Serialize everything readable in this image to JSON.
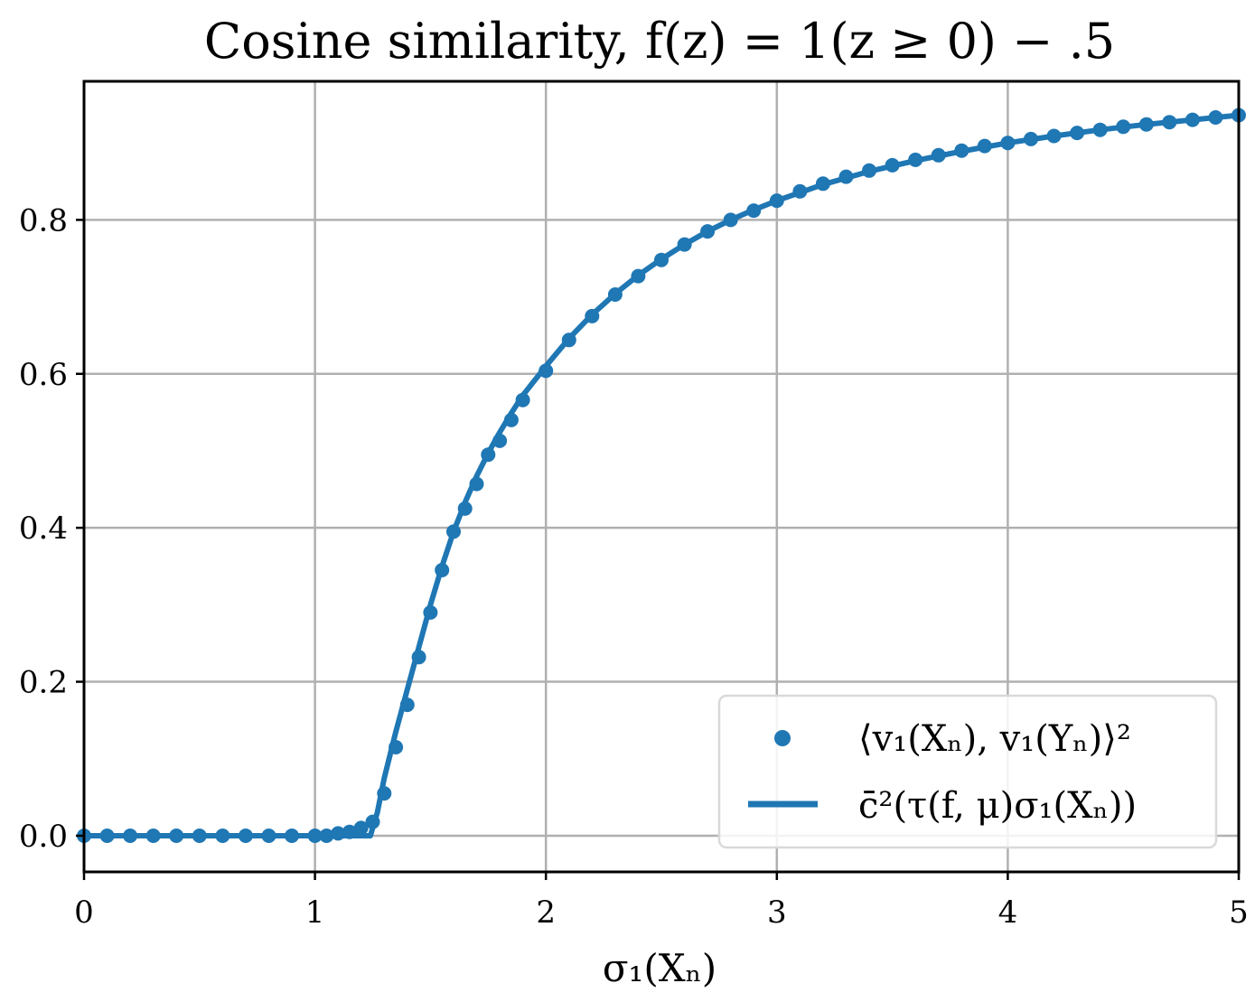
{
  "colors": {
    "series": "#1f77b4",
    "grid": "#b0b0b0",
    "axis": "#000000",
    "legend_border": "#d9d9d9"
  },
  "chart_data": {
    "type": "scatter",
    "title": "Cosine similarity, f(z) = 1(z ≥ 0) − .5",
    "xlabel": "σ₁(Xₙ)",
    "ylabel": "",
    "xlim": [
      0,
      5
    ],
    "ylim": [
      -0.047,
      0.98
    ],
    "xticks": [
      0,
      1,
      2,
      3,
      4,
      5
    ],
    "xtick_labels": [
      "0",
      "1",
      "2",
      "3",
      "4",
      "5"
    ],
    "yticks": [
      0.0,
      0.2,
      0.4,
      0.6,
      0.8
    ],
    "ytick_labels": [
      "0.0",
      "0.2",
      "0.4",
      "0.6",
      "0.8"
    ],
    "grid": true,
    "legend_position": "lower-right",
    "series": [
      {
        "name": "⟨v₁(Xₙ), v₁(Yₙ)⟩²",
        "kind": "scatter",
        "x": [
          0.0,
          0.1,
          0.2,
          0.3,
          0.4,
          0.5,
          0.6,
          0.7,
          0.8,
          0.9,
          1.0,
          1.05,
          1.1,
          1.15,
          1.2,
          1.25,
          1.3,
          1.35,
          1.4,
          1.45,
          1.5,
          1.55,
          1.6,
          1.65,
          1.7,
          1.75,
          1.8,
          1.85,
          1.9,
          2.0,
          2.1,
          2.2,
          2.3,
          2.4,
          2.5,
          2.6,
          2.7,
          2.8,
          2.9,
          3.0,
          3.1,
          3.2,
          3.3,
          3.4,
          3.5,
          3.6,
          3.7,
          3.8,
          3.9,
          4.0,
          4.1,
          4.2,
          4.3,
          4.4,
          4.5,
          4.6,
          4.7,
          4.8,
          4.9,
          5.0
        ],
        "y": [
          0.0,
          0.0,
          0.0,
          0.0,
          0.0,
          0.0,
          0.0,
          0.0,
          0.0,
          0.0,
          0.0,
          0.0,
          0.003,
          0.005,
          0.01,
          0.018,
          0.055,
          0.115,
          0.17,
          0.232,
          0.29,
          0.345,
          0.395,
          0.425,
          0.457,
          0.495,
          0.513,
          0.54,
          0.566,
          0.604,
          0.644,
          0.675,
          0.703,
          0.727,
          0.748,
          0.768,
          0.785,
          0.8,
          0.812,
          0.825,
          0.837,
          0.847,
          0.856,
          0.864,
          0.871,
          0.878,
          0.884,
          0.89,
          0.896,
          0.9,
          0.905,
          0.909,
          0.913,
          0.917,
          0.921,
          0.924,
          0.927,
          0.93,
          0.933,
          0.936
        ]
      },
      {
        "name": "c̄²(τ(f, μ)σ₁(Xₙ))",
        "kind": "line",
        "x": [
          0.0,
          0.5,
          1.0,
          1.2,
          1.24,
          1.27,
          1.3,
          1.35,
          1.4,
          1.45,
          1.5,
          1.55,
          1.6,
          1.65,
          1.7,
          1.75,
          1.8,
          1.85,
          1.9,
          2.0,
          2.1,
          2.2,
          2.3,
          2.4,
          2.5,
          2.6,
          2.7,
          2.8,
          2.9,
          3.0,
          3.2,
          3.4,
          3.6,
          3.8,
          4.0,
          4.2,
          4.4,
          4.6,
          4.8,
          5.0
        ],
        "y": [
          0.0,
          0.0,
          0.0,
          0.0,
          0.0,
          0.03,
          0.075,
          0.135,
          0.19,
          0.245,
          0.3,
          0.35,
          0.395,
          0.433,
          0.467,
          0.497,
          0.524,
          0.549,
          0.572,
          0.61,
          0.646,
          0.677,
          0.704,
          0.728,
          0.749,
          0.768,
          0.785,
          0.8,
          0.813,
          0.825,
          0.846,
          0.863,
          0.877,
          0.889,
          0.9,
          0.909,
          0.917,
          0.924,
          0.93,
          0.936
        ]
      }
    ]
  }
}
